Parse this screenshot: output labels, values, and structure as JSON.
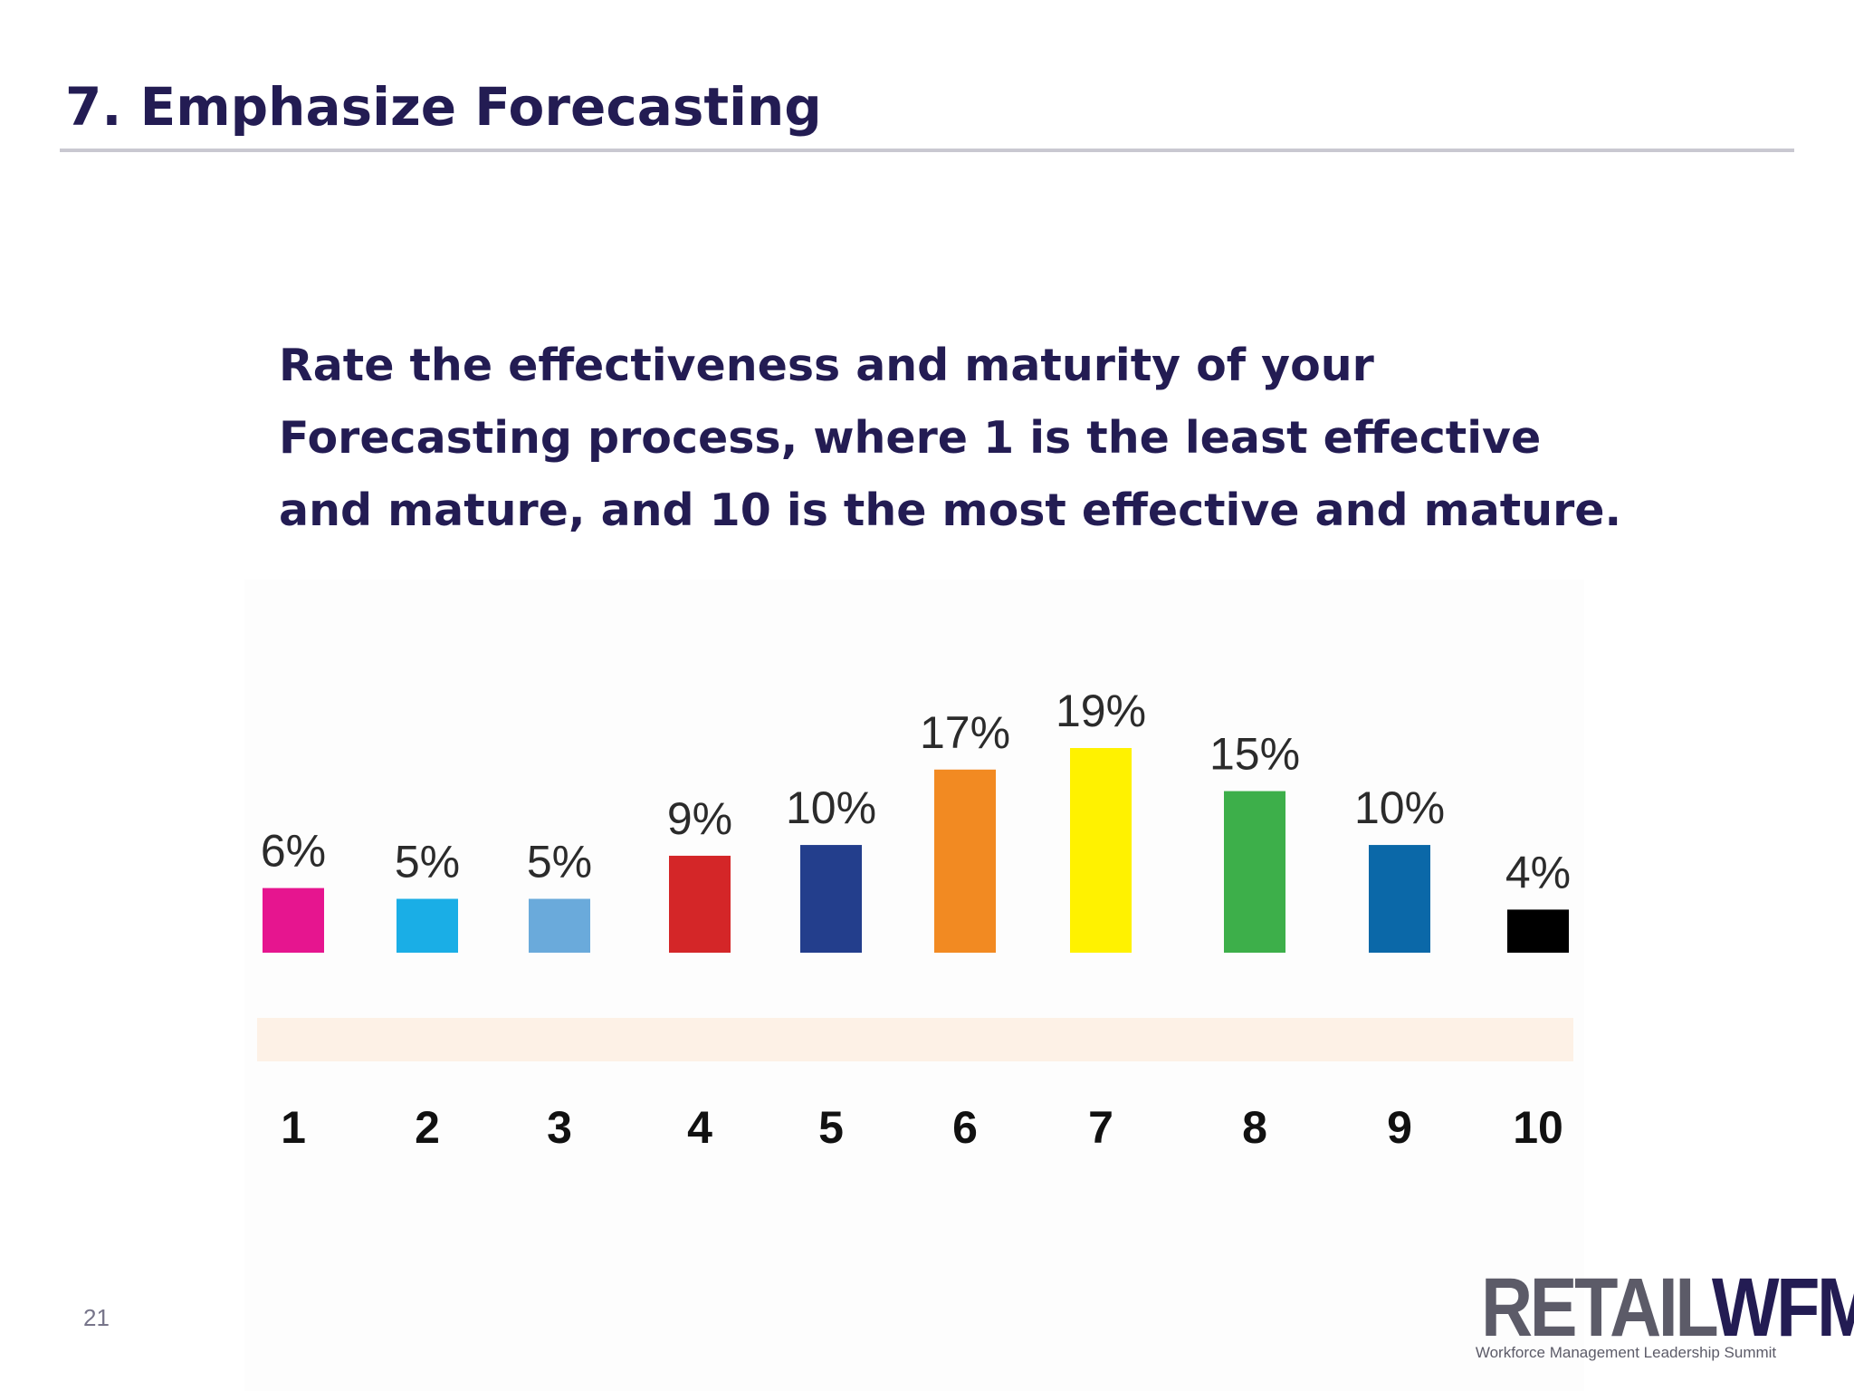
{
  "slide": {
    "title": "7. Emphasize Forecasting",
    "page_number": "21"
  },
  "question_text": "Rate the effectiveness and maturity of your Forecasting process, where 1 is the least effective and mature, and 10 is the most effective and mature.",
  "logo": {
    "text": "RETAILWFM",
    "part1": "RETAIL",
    "part2": "WFM",
    "tagline": "Workforce Management Leadership Summit"
  },
  "chart_data": {
    "type": "bar",
    "categories": [
      "1",
      "2",
      "3",
      "4",
      "5",
      "6",
      "7",
      "8",
      "9",
      "10"
    ],
    "values": [
      6,
      5,
      5,
      9,
      10,
      17,
      19,
      15,
      10,
      4
    ],
    "value_labels": [
      "6%",
      "5%",
      "5%",
      "9%",
      "10%",
      "17%",
      "19%",
      "15%",
      "10%",
      "4%"
    ],
    "colors": [
      "#e6158f",
      "#1aaee6",
      "#6aaadb",
      "#d42628",
      "#233e8c",
      "#f28a22",
      "#fff200",
      "#3daf4a",
      "#0b68a8",
      "#000000"
    ],
    "title": "",
    "xlabel": "",
    "ylabel": "",
    "ylim": [
      0,
      19
    ],
    "axis_band_color": "#fdf1e6",
    "grid": false,
    "legend": "none"
  }
}
